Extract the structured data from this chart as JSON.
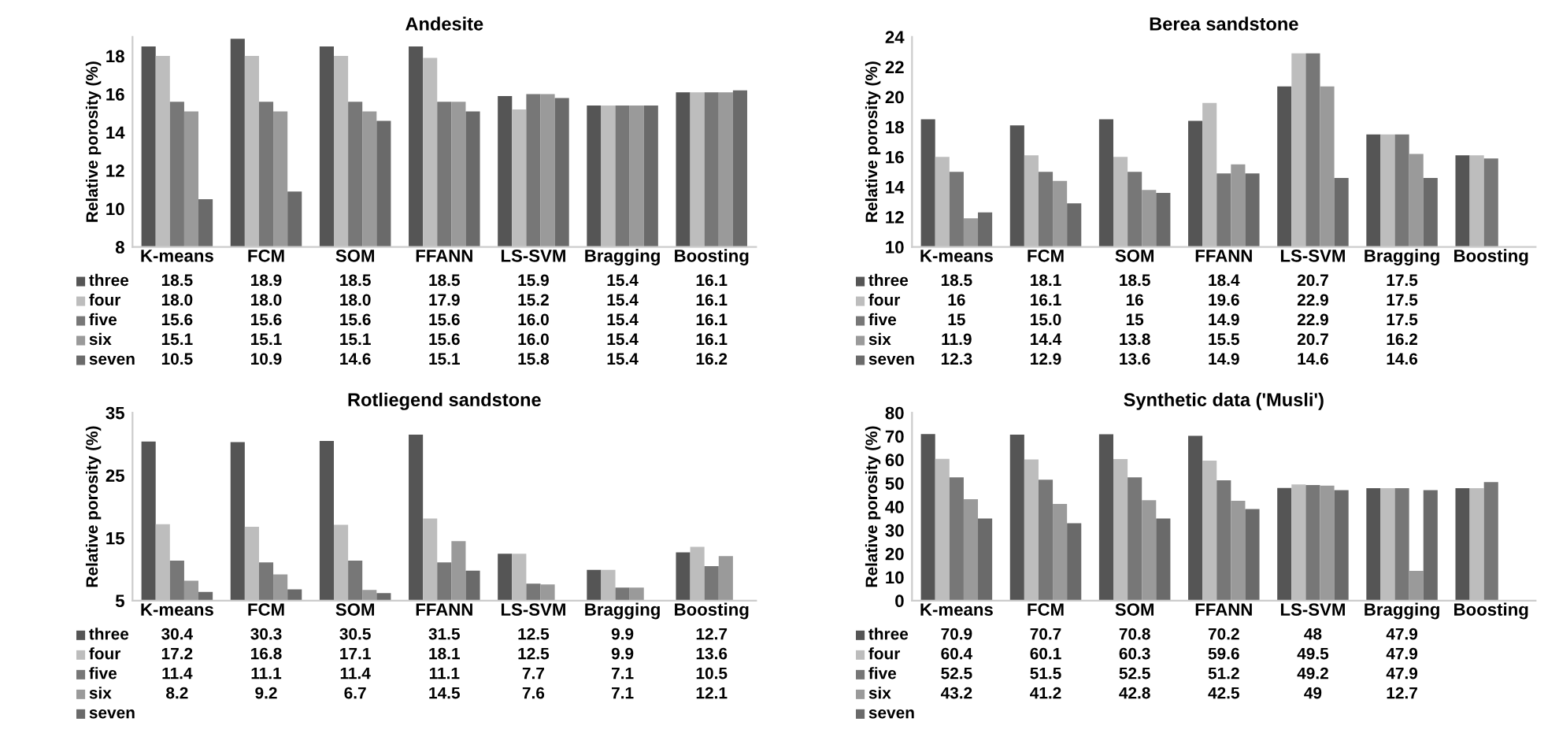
{
  "chart_data": [
    {
      "type": "bar",
      "title": "Andesite",
      "ylabel": "Relative porosity (%)",
      "categories": [
        "K-means",
        "FCM",
        "SOM",
        "FFANN",
        "LS-SVM",
        "Bragging",
        "Boosting"
      ],
      "ylim": [
        8,
        19
      ],
      "yticks": [
        8,
        10,
        12,
        14,
        16,
        18
      ],
      "grid": false,
      "legend": "bottom",
      "series": [
        {
          "name": "three",
          "color": "#555555",
          "values": [
            18.5,
            18.9,
            18.5,
            18.5,
            15.9,
            15.4,
            16.1
          ],
          "value_labels": [
            "18.5",
            "18.9",
            "18.5",
            "18.5",
            "15.9",
            "15.4",
            "16.1"
          ]
        },
        {
          "name": "four",
          "color": "#bdbdbd",
          "values": [
            18.0,
            18.0,
            18.0,
            17.9,
            15.2,
            15.4,
            16.1
          ],
          "value_labels": [
            "18.0",
            "18.0",
            "18.0",
            "17.9",
            "15.2",
            "15.4",
            "16.1"
          ]
        },
        {
          "name": "five",
          "color": "#777777",
          "values": [
            15.6,
            15.6,
            15.6,
            15.6,
            16.0,
            15.4,
            16.1
          ],
          "value_labels": [
            "15.6",
            "15.6",
            "15.6",
            "15.6",
            "16.0",
            "15.4",
            "16.1"
          ]
        },
        {
          "name": "six",
          "color": "#9a9a9a",
          "values": [
            15.1,
            15.1,
            15.1,
            15.6,
            16.0,
            15.4,
            16.1
          ],
          "value_labels": [
            "15.1",
            "15.1",
            "15.1",
            "15.6",
            "16.0",
            "15.4",
            "16.1"
          ]
        },
        {
          "name": "seven",
          "color": "#6a6a6a",
          "values": [
            10.5,
            10.9,
            14.6,
            15.1,
            15.8,
            15.4,
            16.2
          ],
          "value_labels": [
            "10.5",
            "10.9",
            "14.6",
            "15.1",
            "15.8",
            "15.4",
            "16.2"
          ]
        }
      ]
    },
    {
      "type": "bar",
      "title": "Berea sandstone",
      "ylabel": "Relative porosity (%)",
      "categories": [
        "K-means",
        "FCM",
        "SOM",
        "FFANN",
        "LS-SVM",
        "Bragging",
        "Boosting"
      ],
      "ylim": [
        10,
        24
      ],
      "yticks": [
        10,
        12,
        14,
        16,
        18,
        20,
        22,
        24
      ],
      "grid": false,
      "legend": "bottom",
      "series": [
        {
          "name": "three",
          "color": "#555555",
          "values": [
            18.5,
            18.1,
            18.5,
            18.4,
            20.7,
            17.5,
            16.1
          ],
          "value_labels": [
            "18.5",
            "18.1",
            "18.5",
            "18.4",
            "20.7",
            "17.5",
            null
          ]
        },
        {
          "name": "four",
          "color": "#bdbdbd",
          "values": [
            16,
            16.1,
            16,
            19.6,
            22.9,
            17.5,
            16.1
          ],
          "value_labels": [
            "16",
            "16.1",
            "16",
            "19.6",
            "22.9",
            "17.5",
            null
          ]
        },
        {
          "name": "five",
          "color": "#777777",
          "values": [
            15,
            15.0,
            15,
            14.9,
            22.9,
            17.5,
            15.9
          ],
          "value_labels": [
            "15",
            "15.0",
            "15",
            "14.9",
            "22.9",
            "17.5",
            null
          ]
        },
        {
          "name": "six",
          "color": "#9a9a9a",
          "values": [
            11.9,
            14.4,
            13.8,
            15.5,
            20.7,
            16.2,
            null
          ],
          "value_labels": [
            "11.9",
            "14.4",
            "13.8",
            "15.5",
            "20.7",
            "16.2",
            null
          ]
        },
        {
          "name": "seven",
          "color": "#6a6a6a",
          "values": [
            12.3,
            12.9,
            13.6,
            14.9,
            14.6,
            14.6,
            null
          ],
          "value_labels": [
            "12.3",
            "12.9",
            "13.6",
            "14.9",
            "14.6",
            "14.6",
            null
          ]
        }
      ]
    },
    {
      "type": "bar",
      "title": "Rotliegend sandstone",
      "ylabel": "Relative porosity (%)",
      "categories": [
        "K-means",
        "FCM",
        "SOM",
        "FFANN",
        "LS-SVM",
        "Bragging",
        "Boosting"
      ],
      "ylim": [
        5,
        35
      ],
      "yticks": [
        5,
        15,
        25,
        35
      ],
      "grid": false,
      "legend": "bottom",
      "series": [
        {
          "name": "three",
          "color": "#555555",
          "values": [
            30.4,
            30.3,
            30.5,
            31.5,
            12.5,
            9.9,
            12.7
          ],
          "value_labels": [
            "30.4",
            "30.3",
            "30.5",
            "31.5",
            "12.5",
            "9.9",
            "12.7"
          ]
        },
        {
          "name": "four",
          "color": "#bdbdbd",
          "values": [
            17.2,
            16.8,
            17.1,
            18.1,
            12.5,
            9.9,
            13.6
          ],
          "value_labels": [
            "17.2",
            "16.8",
            "17.1",
            "18.1",
            "12.5",
            "9.9",
            "13.6"
          ]
        },
        {
          "name": "five",
          "color": "#777777",
          "values": [
            11.4,
            11.1,
            11.4,
            11.1,
            7.7,
            7.1,
            10.5
          ],
          "value_labels": [
            "11.4",
            "11.1",
            "11.4",
            "11.1",
            "7.7",
            "7.1",
            "10.5"
          ]
        },
        {
          "name": "six",
          "color": "#9a9a9a",
          "values": [
            8.2,
            9.2,
            6.7,
            14.5,
            7.6,
            7.1,
            12.1
          ],
          "value_labels": [
            "8.2",
            "9.2",
            "6.7",
            "14.5",
            "7.6",
            "7.1",
            "12.1"
          ]
        },
        {
          "name": "seven",
          "color": "#6a6a6a",
          "values": [
            6.4,
            6.8,
            6.2,
            9.8,
            null,
            null,
            null
          ],
          "value_labels": [
            null,
            null,
            null,
            null,
            null,
            null,
            null
          ]
        }
      ]
    },
    {
      "type": "bar",
      "title": "Synthetic data ('Musli')",
      "ylabel": "Relative porosity (%)",
      "categories": [
        "K-means",
        "FCM",
        "SOM",
        "FFANN",
        "LS-SVM",
        "Bragging",
        "Boosting"
      ],
      "ylim": [
        0,
        80
      ],
      "yticks": [
        0,
        10,
        20,
        30,
        40,
        50,
        60,
        70,
        80
      ],
      "grid": false,
      "legend": "bottom",
      "series": [
        {
          "name": "three",
          "color": "#555555",
          "values": [
            70.9,
            70.7,
            70.8,
            70.2,
            48,
            47.9,
            47.9
          ],
          "value_labels": [
            "70.9",
            "70.7",
            "70.8",
            "70.2",
            "48",
            "47.9",
            null
          ]
        },
        {
          "name": "four",
          "color": "#bdbdbd",
          "values": [
            60.4,
            60.1,
            60.3,
            59.6,
            49.5,
            47.9,
            47.9
          ],
          "value_labels": [
            "60.4",
            "60.1",
            "60.3",
            "59.6",
            "49.5",
            "47.9",
            null
          ]
        },
        {
          "name": "five",
          "color": "#777777",
          "values": [
            52.5,
            51.5,
            52.5,
            51.2,
            49.2,
            47.9,
            50.5
          ],
          "value_labels": [
            "52.5",
            "51.5",
            "52.5",
            "51.2",
            "49.2",
            "47.9",
            null
          ]
        },
        {
          "name": "six",
          "color": "#9a9a9a",
          "values": [
            43.2,
            41.2,
            42.8,
            42.5,
            49,
            12.7,
            null
          ],
          "value_labels": [
            "43.2",
            "41.2",
            "42.8",
            "42.5",
            "49",
            "12.7",
            null
          ]
        },
        {
          "name": "seven",
          "color": "#6a6a6a",
          "values": [
            35,
            33,
            35,
            39,
            47,
            47,
            null
          ],
          "value_labels": [
            null,
            null,
            null,
            null,
            null,
            null,
            null
          ]
        }
      ]
    }
  ]
}
